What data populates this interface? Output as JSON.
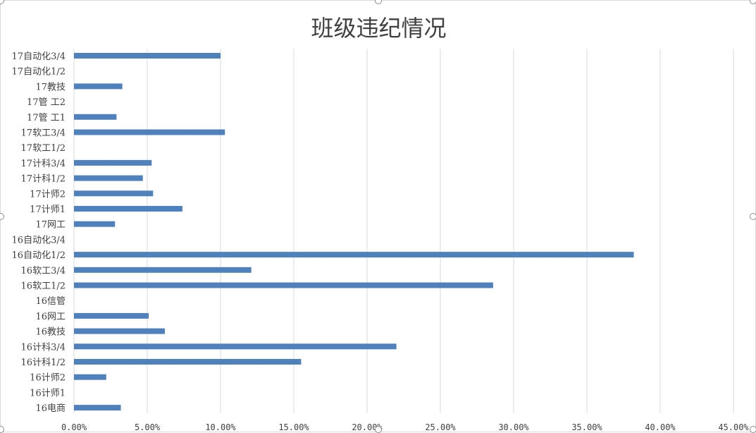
{
  "chart_data": {
    "type": "bar",
    "orientation": "horizontal",
    "title": "班级违纪情况",
    "categories": [
      "17自动化3/4",
      "17自动化1/2",
      "17教技",
      "17管 工2",
      "17管 工1",
      "17软工3/4",
      "17软工1/2",
      "17计科3/4",
      "17计科1/2",
      "17计师2",
      "17计师1",
      "17网工",
      "16自动化3/4",
      "16自动化1/2",
      "16软工3/4",
      "16软工1/2",
      "16信管",
      "16网工",
      "16教技",
      "16计科3/4",
      "16计科1/2",
      "16计师2",
      "16计师1",
      "16电商"
    ],
    "values": [
      0.1,
      0,
      0.033,
      0,
      0.029,
      0.103,
      0,
      0.053,
      0.047,
      0.054,
      0.074,
      0.028,
      0,
      0.382,
      0.121,
      0.286,
      0,
      0.051,
      0.062,
      0.22,
      0.155,
      0.022,
      0,
      0.032
    ],
    "xlim": [
      0,
      0.45
    ],
    "xticks": [
      "0.00%",
      "5.00%",
      "10.00%",
      "15.00%",
      "20.00%",
      "25.00%",
      "30.00%",
      "35.00%",
      "40.00%",
      "45.00%"
    ],
    "grid": true,
    "bar_color": "#4f81bd",
    "grid_color": "#d9d9d9"
  }
}
